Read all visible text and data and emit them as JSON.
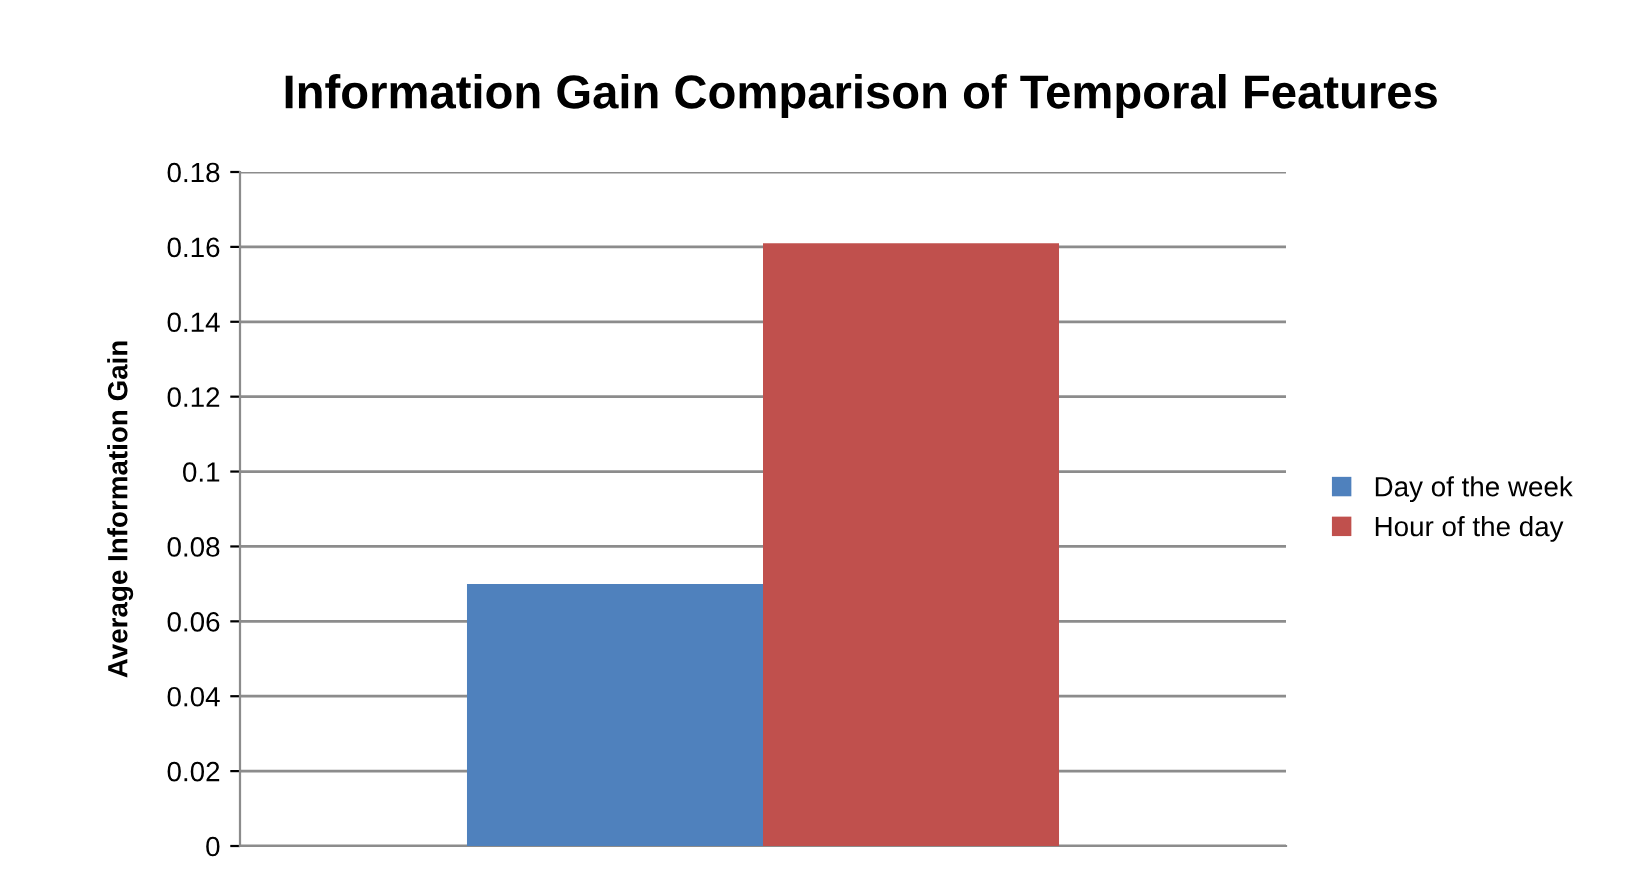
{
  "chart_data": {
    "type": "bar",
    "title": "Information Gain Comparison of Temporal Features",
    "ylabel": "Average Information Gain",
    "categories": [
      null
    ],
    "series": [
      {
        "name": "Day of the week",
        "color": "#4f81bd",
        "values": [
          0.07
        ]
      },
      {
        "name": "Hour of the day",
        "color": "#c0504d",
        "values": [
          0.161
        ]
      }
    ],
    "ylim": [
      0,
      0.18
    ],
    "yticks": [
      0,
      0.02,
      0.04,
      0.06,
      0.08,
      0.1,
      0.12,
      0.14,
      0.16,
      0.18
    ],
    "grid": "y",
    "legend": "right"
  }
}
